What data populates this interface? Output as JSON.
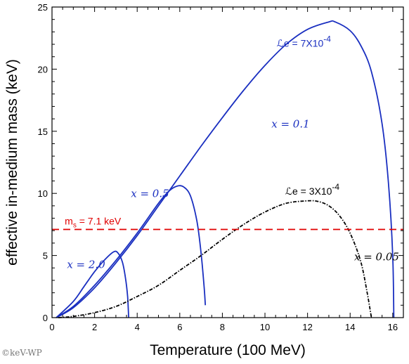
{
  "chart_data": {
    "type": "line",
    "xlabel": "Temperature (100 MeV)",
    "ylabel": "effective in-medium mass (keV)",
    "xlim": [
      0,
      16.5
    ],
    "ylim": [
      0,
      25
    ],
    "xticks": [
      0,
      2,
      4,
      6,
      8,
      10,
      12,
      14,
      16
    ],
    "yticks": [
      0,
      5,
      10,
      15,
      20,
      25
    ],
    "grid": false,
    "colors": {
      "blue": "#1a2fc0",
      "black": "#000000",
      "red": "#e00000"
    },
    "series": [
      {
        "style": "solid-blue",
        "x": [
          0.2,
          1.0,
          2.0,
          3.0,
          4.0,
          5.0,
          6.0,
          7.0,
          8.0,
          9.0,
          10.0,
          11.0,
          12.0,
          13.0,
          13.3,
          14.0,
          14.5,
          15.0,
          15.5,
          15.8,
          16.0,
          16.05
        ],
        "y": [
          0.0,
          0.8,
          2.4,
          4.4,
          6.6,
          9.0,
          11.4,
          13.8,
          16.1,
          18.3,
          20.3,
          22.0,
          23.2,
          23.8,
          23.8,
          23.1,
          21.9,
          19.8,
          15.6,
          10.8,
          5.0,
          0.0
        ]
      },
      {
        "style": "solid-blue",
        "x": [
          0.2,
          1.0,
          2.0,
          3.0,
          4.0,
          5.0,
          5.5,
          5.9,
          6.2,
          6.5,
          6.8,
          7.0,
          7.15,
          7.2
        ],
        "y": [
          0.0,
          0.9,
          2.6,
          4.6,
          6.8,
          9.2,
          10.2,
          10.6,
          10.5,
          9.8,
          7.8,
          5.2,
          2.3,
          1.0
        ]
      },
      {
        "style": "solid-blue",
        "x": [
          0.2,
          1.0,
          1.5,
          2.0,
          2.5,
          2.9,
          3.1,
          3.3,
          3.45,
          3.55,
          3.6
        ],
        "y": [
          0.0,
          1.3,
          2.5,
          3.7,
          4.7,
          5.3,
          5.2,
          4.5,
          3.2,
          1.7,
          0.0
        ]
      },
      {
        "style": "dashdot-black",
        "x": [
          0.3,
          1.0,
          2.0,
          3.0,
          4.0,
          5.0,
          6.0,
          7.0,
          8.0,
          9.0,
          10.0,
          11.0,
          12.0,
          12.5,
          13.0,
          13.5,
          14.0,
          14.5,
          14.8,
          15.0
        ],
        "y": [
          0.0,
          0.1,
          0.4,
          0.9,
          1.7,
          2.6,
          3.8,
          5.0,
          6.3,
          7.5,
          8.5,
          9.2,
          9.4,
          9.35,
          9.0,
          8.2,
          6.8,
          4.5,
          2.0,
          0.0
        ]
      },
      {
        "style": "dashed-red",
        "x": [
          0,
          16.5
        ],
        "y": [
          7.1,
          7.1
        ]
      }
    ],
    "annotations": [
      {
        "id": "le7",
        "text": "ℒe = 7X10",
        "sup": "-4",
        "x": 13.1,
        "y": 21.8,
        "color": "#1a2fc0",
        "font": "sans"
      },
      {
        "id": "x01",
        "text": "x = 0.1",
        "x": 12.1,
        "y": 15.3,
        "color": "#1a2fc0",
        "font": "serif"
      },
      {
        "id": "x05",
        "text": "x = 0.5",
        "x": 5.5,
        "y": 9.7,
        "color": "#1a2fc0",
        "font": "serif"
      },
      {
        "id": "x20",
        "text": "x = 2.0",
        "x": 2.5,
        "y": 4.0,
        "color": "#1a2fc0",
        "font": "serif"
      },
      {
        "id": "le3",
        "text": "ℒe = 3X10",
        "sup": "-4",
        "x": 13.5,
        "y": 9.9,
        "color": "#000000",
        "font": "sans"
      },
      {
        "id": "x005",
        "text": "x = 0.05",
        "x": 16.3,
        "y": 4.6,
        "color": "#000000",
        "font": "serif"
      },
      {
        "id": "ms",
        "text": "ms = 7.1 keV",
        "x": 0.6,
        "y": 7.5,
        "color": "#e00000",
        "font": "sans"
      }
    ]
  },
  "credit": "©keV-WP"
}
